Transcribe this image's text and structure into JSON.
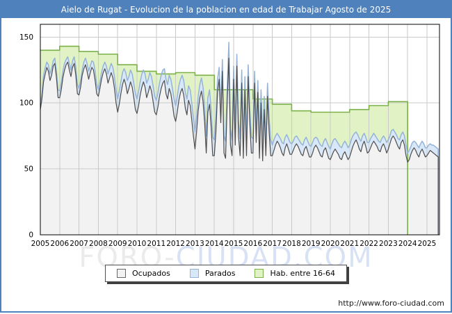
{
  "window": {
    "title": "Aielo de Rugat - Evolucion de la poblacion en edad de Trabajar Agosto de 2025",
    "titlebar_color": "#4f81bd",
    "frame_color": "#4f81bd"
  },
  "watermark": {
    "left": "FORO-",
    "right": "CIUDAD.COM",
    "left_color": "#ebebeb",
    "right_color": "#d9e2f4"
  },
  "footer": {
    "url": "http://www.foro-ciudad.com"
  },
  "legend": {
    "items": [
      {
        "label": "Ocupados",
        "series": "Ocupados"
      },
      {
        "label": "Parados",
        "series": "Parados"
      },
      {
        "label": "Hab. entre 16-64",
        "series": "Hab. entre 16-64"
      }
    ]
  },
  "chart_data": {
    "type": "area",
    "title": "Aielo de Rugat - Evolucion de la poblacion en edad de Trabajar Agosto de 2025",
    "xlabel": "",
    "ylabel": "",
    "grid": true,
    "legend_position": "bottom",
    "x_axis": {
      "tick_years": [
        2005,
        2006,
        2007,
        2008,
        2009,
        2010,
        2011,
        2012,
        2013,
        2014,
        2015,
        2016,
        2017,
        2018,
        2019,
        2020,
        2021,
        2022,
        2023,
        2024,
        2025
      ],
      "range": [
        2005,
        2025.67
      ]
    },
    "y_axis": {
      "ticks": [
        0,
        50,
        100,
        150
      ],
      "range": [
        0,
        159
      ]
    },
    "series": [
      {
        "name": "Hab. entre 16-64",
        "kind": "annual_step",
        "fill": "#e1f3c4",
        "stroke": "#7cb14a",
        "ends_at": 2024.0,
        "annual": {
          "2005": 140,
          "2006": 143,
          "2007": 139,
          "2008": 137,
          "2009": 129,
          "2010": 124,
          "2011": 122,
          "2012": 123,
          "2013": 121,
          "2014": 110,
          "2015": 110,
          "2016": 103,
          "2017": 99,
          "2018": 94,
          "2019": 93,
          "2020": 93,
          "2021": 95,
          "2022": 98,
          "2023": 101
        }
      },
      {
        "name": "Parados",
        "kind": "monthly",
        "stacked_on": "Ocupados",
        "fill": "#d9e8f8",
        "stroke": "#95b3d7",
        "monthly": {
          "2005": [
            4,
            4,
            5,
            5,
            4,
            5,
            5,
            5,
            4,
            4,
            5,
            6
          ],
          "2006": [
            5,
            5,
            5,
            5,
            4,
            4,
            5,
            5,
            5,
            5,
            6,
            7
          ],
          "2007": [
            5,
            5,
            4,
            5,
            5,
            6,
            6,
            5,
            5,
            6,
            7,
            7
          ],
          "2008": [
            5,
            5,
            5,
            5,
            5,
            6,
            7,
            7,
            7,
            8,
            9,
            10
          ],
          "2009": [
            10,
            10,
            9,
            9,
            8,
            9,
            10,
            9,
            9,
            10,
            11,
            12
          ],
          "2010": [
            11,
            11,
            10,
            10,
            9,
            10,
            11,
            10,
            10,
            11,
            12,
            12
          ],
          "2011": [
            11,
            11,
            10,
            10,
            10,
            9,
            11,
            11,
            10,
            11,
            12,
            13
          ],
          "2012": [
            12,
            12,
            11,
            10,
            10,
            11,
            12,
            12,
            11,
            12,
            13,
            14
          ],
          "2013": [
            13,
            12,
            11,
            10,
            10,
            11,
            12,
            13,
            11,
            11,
            13,
            14
          ],
          "2014": [
            12,
            12,
            10,
            9,
            11,
            9,
            13,
            13,
            11,
            12,
            12,
            12
          ],
          "2015": [
            10,
            12,
            9,
            12,
            13,
            10,
            13,
            10,
            13,
            9,
            11,
            12
          ],
          "2016": [
            11,
            9,
            12,
            9,
            13,
            10,
            13,
            10,
            12,
            10,
            11,
            12
          ],
          "2017": [
            8,
            8,
            7,
            6,
            6,
            7,
            8,
            9,
            8,
            7,
            8,
            9
          ],
          "2018": [
            8,
            7,
            7,
            6,
            6,
            7,
            8,
            8,
            7,
            7,
            8,
            9
          ],
          "2019": [
            8,
            8,
            7,
            6,
            7,
            7,
            8,
            8,
            7,
            7,
            8,
            9
          ],
          "2020": [
            8,
            9,
            9,
            8,
            8,
            8,
            9,
            9,
            8,
            8,
            9,
            9
          ],
          "2021": [
            9,
            9,
            8,
            7,
            6,
            7,
            8,
            8,
            7,
            6,
            7,
            8
          ],
          "2022": [
            7,
            7,
            6,
            6,
            6,
            6,
            7,
            7,
            6,
            6,
            7,
            8
          ],
          "2023": [
            7,
            6,
            6,
            5,
            5,
            6,
            6,
            7,
            6,
            6,
            7,
            8
          ],
          "2024": [
            7,
            7,
            6,
            6,
            5,
            6,
            7,
            7,
            6,
            6,
            7,
            7
          ],
          "2025": [
            6,
            6,
            5,
            5,
            6,
            6,
            6,
            6
          ]
        }
      },
      {
        "name": "Ocupados",
        "kind": "monthly",
        "fill": "#f2f2f2",
        "stroke": "#4d4d4d",
        "monthly": {
          "2005": [
            95,
            103,
            116,
            122,
            127,
            124,
            117,
            121,
            128,
            130,
            119,
            104
          ],
          "2006": [
            104,
            110,
            119,
            125,
            129,
            131,
            125,
            120,
            127,
            130,
            121,
            107
          ],
          "2007": [
            106,
            112,
            121,
            126,
            129,
            124,
            118,
            123,
            127,
            125,
            117,
            107
          ],
          "2008": [
            105,
            111,
            118,
            123,
            126,
            122,
            115,
            119,
            123,
            119,
            111,
            100
          ],
          "2009": [
            93,
            99,
            107,
            114,
            118,
            114,
            107,
            111,
            116,
            112,
            104,
            95
          ],
          "2010": [
            92,
            98,
            106,
            112,
            116,
            112,
            104,
            108,
            113,
            109,
            101,
            93
          ],
          "2011": [
            91,
            97,
            105,
            111,
            115,
            117,
            107,
            103,
            111,
            107,
            99,
            90
          ],
          "2012": [
            86,
            93,
            102,
            108,
            111,
            106,
            96,
            91,
            102,
            98,
            87,
            75
          ],
          "2013": [
            65,
            78,
            94,
            104,
            109,
            101,
            85,
            62,
            93,
            99,
            82,
            60
          ],
          "2014": [
            60,
            78,
            108,
            118,
            85,
            124,
            62,
            58,
            100,
            134,
            68,
            60
          ],
          "2015": [
            118,
            68,
            128,
            75,
            60,
            115,
            58,
            110,
            60,
            120,
            85,
            62
          ],
          "2016": [
            62,
            115,
            70,
            108,
            58,
            100,
            56,
            95,
            60,
            105,
            78,
            60
          ],
          "2017": [
            60,
            64,
            68,
            71,
            69,
            66,
            62,
            60,
            66,
            69,
            65,
            61
          ],
          "2018": [
            61,
            64,
            67,
            69,
            67,
            64,
            61,
            60,
            65,
            67,
            63,
            59
          ],
          "2019": [
            59,
            62,
            66,
            68,
            66,
            63,
            60,
            59,
            64,
            66,
            62,
            58
          ],
          "2020": [
            57,
            60,
            63,
            65,
            63,
            61,
            58,
            57,
            61,
            63,
            60,
            57
          ],
          "2021": [
            59,
            63,
            67,
            70,
            72,
            69,
            65,
            63,
            68,
            71,
            67,
            62
          ],
          "2022": [
            63,
            66,
            69,
            71,
            69,
            67,
            64,
            63,
            67,
            69,
            66,
            62
          ],
          "2023": [
            65,
            69,
            73,
            75,
            73,
            70,
            67,
            65,
            70,
            72,
            68,
            60
          ],
          "2024": [
            55,
            57,
            61,
            64,
            66,
            64,
            61,
            59,
            63,
            65,
            62,
            59
          ],
          "2025": [
            60,
            62,
            64,
            63,
            62,
            61,
            60,
            59
          ]
        }
      }
    ]
  }
}
